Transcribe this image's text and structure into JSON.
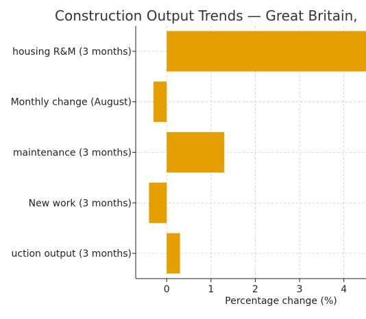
{
  "chart_data": {
    "type": "bar",
    "orientation": "horizontal",
    "title": "Construction Output Trends — Great Britain,",
    "xlabel": "Percentage change (%)",
    "ylabel": "",
    "categories": [
      "housing R&M (3 months)",
      "Monthly change (August)",
      "maintenance (3 months)",
      "New work (3 months)",
      "uction output (3 months)"
    ],
    "values": [
      4.6,
      -0.3,
      1.3,
      -0.4,
      0.3
    ],
    "xlim": [
      -0.7,
      4.5
    ],
    "xticks": [
      "0",
      "1",
      "2",
      "3",
      "4"
    ],
    "grid": true,
    "bar_color": "#e5a000"
  }
}
